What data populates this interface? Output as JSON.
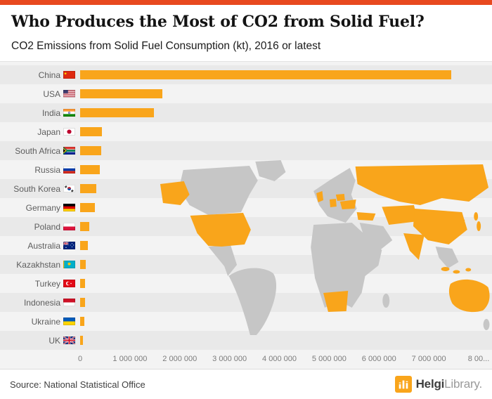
{
  "colors": {
    "accent": "#e8491f",
    "bar": "#f9a51b",
    "map_base": "#c6c6c6",
    "map_highlight": "#f9a51b"
  },
  "chart_data": {
    "type": "bar",
    "orientation": "horizontal",
    "title": "Who Produces the Most of CO2 from Solid Fuel?",
    "subtitle": "CO2 Emissions from Solid Fuel Consumption (kt), 2016 or latest",
    "unit": "kt",
    "categories": [
      "China",
      "USA",
      "India",
      "Japan",
      "South Africa",
      "Russia",
      "South Korea",
      "Germany",
      "Poland",
      "Australia",
      "Kazakhstan",
      "Turkey",
      "Indonesia",
      "Ukraine",
      "UK"
    ],
    "values": [
      7450000,
      1650000,
      1480000,
      440000,
      420000,
      400000,
      320000,
      300000,
      180000,
      150000,
      115000,
      100000,
      95000,
      80000,
      60000
    ],
    "flag_keys": [
      "cn",
      "us",
      "in",
      "jp",
      "za",
      "ru",
      "kr",
      "de",
      "pl",
      "au",
      "kz",
      "tr",
      "id",
      "ua",
      "gb"
    ],
    "x_tick_labels": [
      "0",
      "1 000 000",
      "2 000 000",
      "3 000 000",
      "4 000 000",
      "5 000 000",
      "6 000 000",
      "7 000 000",
      "8 00..."
    ],
    "xlim": [
      0,
      8000000
    ],
    "xlabel": "",
    "ylabel": "",
    "grid": false,
    "legend": "none"
  },
  "footer": {
    "source": "Source: National Statistical Office",
    "logo_bold": "Helgi",
    "logo_light": "Library."
  }
}
